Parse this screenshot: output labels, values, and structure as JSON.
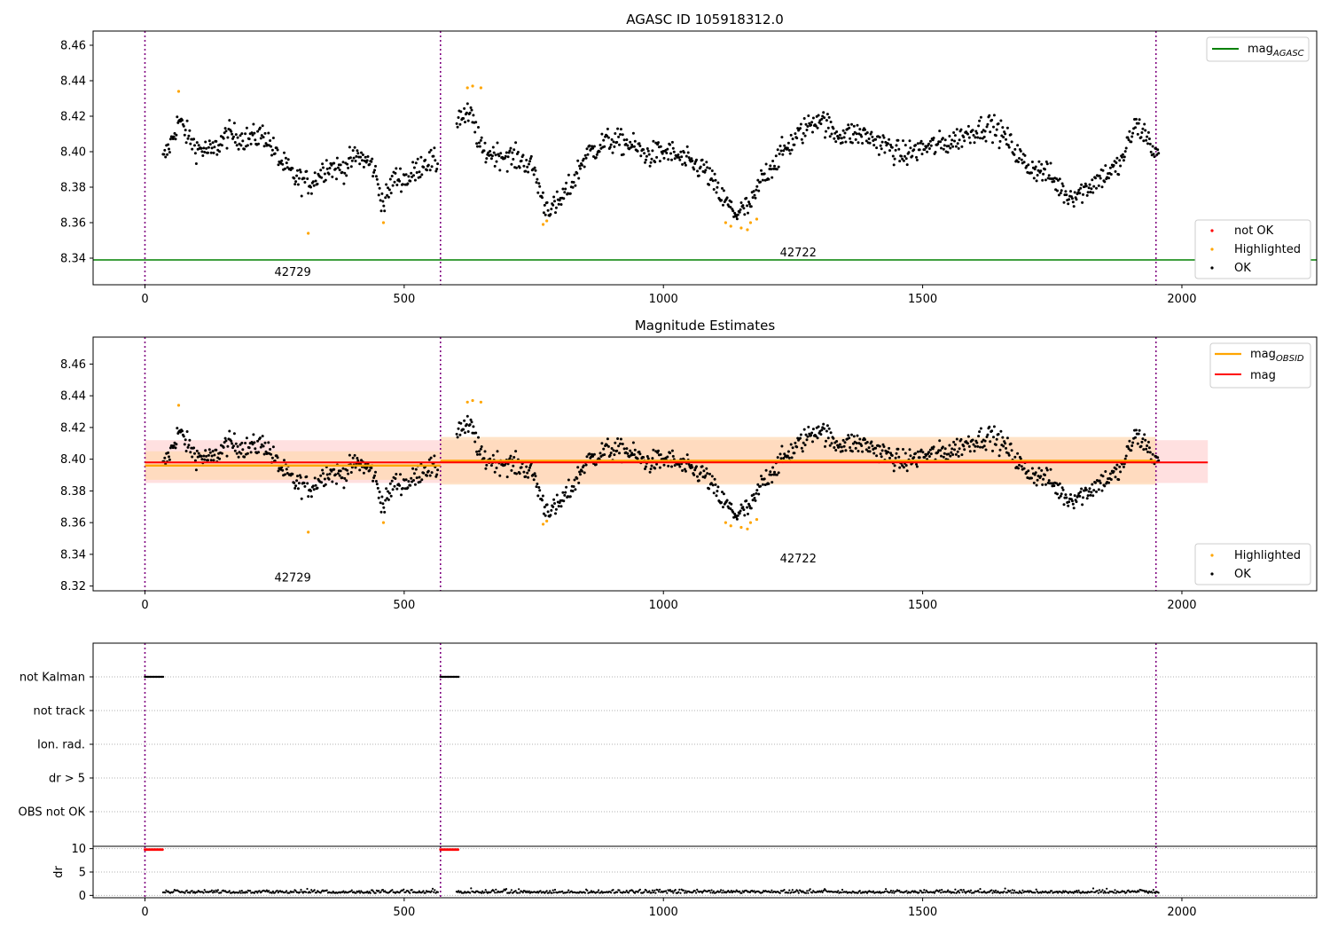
{
  "chart_data": [
    {
      "type": "scatter",
      "title": "AGASC ID 105918312.0",
      "xlim": [
        -100,
        2260
      ],
      "ylim": [
        8.325,
        8.468
      ],
      "xticks": [
        0,
        500,
        1000,
        1500,
        2000
      ],
      "yticks": [
        8.34,
        8.36,
        8.38,
        8.4,
        8.42,
        8.44,
        8.46
      ],
      "mag_agasc": 8.339,
      "obs_boundaries": [
        0,
        570,
        1950
      ],
      "obs_labels": [
        {
          "label": "42729",
          "x": 285,
          "y": 8.33
        },
        {
          "label": "42722",
          "x": 1260,
          "y": 8.341
        }
      ],
      "series": [
        {
          "name": "not OK",
          "color": "#ff0000"
        },
        {
          "name": "Highlighted",
          "color": "#ffa500"
        },
        {
          "name": "OK",
          "color": "#000000"
        }
      ],
      "line_legend": {
        "name": "mag",
        "sub": "AGASC",
        "color": "#008000"
      },
      "trend": [
        [
          35,
          8.395
        ],
        [
          50,
          8.405
        ],
        [
          65,
          8.418
        ],
        [
          80,
          8.41
        ],
        [
          100,
          8.402
        ],
        [
          130,
          8.4
        ],
        [
          160,
          8.41
        ],
        [
          200,
          8.407
        ],
        [
          230,
          8.41
        ],
        [
          260,
          8.395
        ],
        [
          290,
          8.385
        ],
        [
          320,
          8.382
        ],
        [
          350,
          8.392
        ],
        [
          380,
          8.39
        ],
        [
          410,
          8.398
        ],
        [
          440,
          8.392
        ],
        [
          460,
          8.37
        ],
        [
          480,
          8.385
        ],
        [
          510,
          8.385
        ],
        [
          540,
          8.395
        ],
        [
          565,
          8.393
        ],
        [
          605,
          8.42
        ],
        [
          630,
          8.42
        ],
        [
          650,
          8.4
        ],
        [
          690,
          8.398
        ],
        [
          730,
          8.395
        ],
        [
          750,
          8.39
        ],
        [
          770,
          8.37
        ],
        [
          790,
          8.368
        ],
        [
          820,
          8.38
        ],
        [
          850,
          8.398
        ],
        [
          890,
          8.406
        ],
        [
          930,
          8.405
        ],
        [
          970,
          8.398
        ],
        [
          1010,
          8.4
        ],
        [
          1040,
          8.395
        ],
        [
          1080,
          8.39
        ],
        [
          1110,
          8.375
        ],
        [
          1140,
          8.365
        ],
        [
          1170,
          8.37
        ],
        [
          1190,
          8.385
        ],
        [
          1230,
          8.4
        ],
        [
          1270,
          8.412
        ],
        [
          1300,
          8.42
        ],
        [
          1330,
          8.41
        ],
        [
          1380,
          8.41
        ],
        [
          1420,
          8.405
        ],
        [
          1460,
          8.398
        ],
        [
          1500,
          8.402
        ],
        [
          1550,
          8.405
        ],
        [
          1600,
          8.412
        ],
        [
          1630,
          8.415
        ],
        [
          1660,
          8.408
        ],
        [
          1700,
          8.392
        ],
        [
          1740,
          8.388
        ],
        [
          1780,
          8.375
        ],
        [
          1810,
          8.378
        ],
        [
          1840,
          8.385
        ],
        [
          1880,
          8.392
        ],
        [
          1910,
          8.415
        ],
        [
          1930,
          8.41
        ],
        [
          1950,
          8.398
        ]
      ],
      "highlighted_points": [
        [
          65,
          8.434
        ],
        [
          315,
          8.354
        ],
        [
          460,
          8.36
        ],
        [
          622,
          8.436
        ],
        [
          632,
          8.437
        ],
        [
          648,
          8.436
        ],
        [
          768,
          8.359
        ],
        [
          775,
          8.361
        ],
        [
          1120,
          8.36
        ],
        [
          1130,
          8.358
        ],
        [
          1150,
          8.357
        ],
        [
          1162,
          8.356
        ],
        [
          1168,
          8.36
        ],
        [
          1180,
          8.362
        ]
      ]
    },
    {
      "type": "scatter",
      "title": "Magnitude Estimates",
      "xlim": [
        -100,
        2260
      ],
      "ylim": [
        8.317,
        8.477
      ],
      "xticks": [
        0,
        500,
        1000,
        1500,
        2000
      ],
      "yticks": [
        8.32,
        8.34,
        8.36,
        8.38,
        8.4,
        8.42,
        8.44,
        8.46
      ],
      "mag": 8.398,
      "mag_band": [
        8.385,
        8.412
      ],
      "mag_x_range": [
        0,
        2050
      ],
      "mag_obsid": [
        {
          "x": [
            0,
            570
          ],
          "value": 8.396,
          "band": [
            8.387,
            8.405
          ]
        },
        {
          "x": [
            570,
            1950
          ],
          "value": 8.399,
          "band": [
            8.384,
            8.414
          ]
        }
      ],
      "obs_labels": [
        {
          "label": "42729",
          "x": 285,
          "y": 8.323
        },
        {
          "label": "42722",
          "x": 1260,
          "y": 8.335
        }
      ],
      "series": [
        {
          "name": "Highlighted",
          "color": "#ffa500"
        },
        {
          "name": "OK",
          "color": "#000000"
        }
      ],
      "line_legend": [
        {
          "name": "mag",
          "sub": "OBSID",
          "color": "#ffa500"
        },
        {
          "name": "mag",
          "sub": "",
          "color": "#ff0000"
        }
      ]
    },
    {
      "type": "scatter",
      "title": "",
      "xlim": [
        -100,
        2260
      ],
      "flag_rows": [
        "not Kalman",
        "not track",
        "Ion. rad.",
        "dr > 5",
        "OBS not OK"
      ],
      "flag_segments": [
        {
          "row": "not Kalman",
          "x": [
            0,
            35
          ]
        },
        {
          "row": "not Kalman",
          "x": [
            570,
            605
          ]
        }
      ]
    },
    {
      "type": "scatter",
      "title": "",
      "ylabel": "dr",
      "xlim": [
        -100,
        2260
      ],
      "ylim": [
        -0.5,
        10.5
      ],
      "xticks": [
        0,
        500,
        1000,
        1500,
        2000
      ],
      "yticks": [
        0,
        5,
        10
      ],
      "red_segments": [
        {
          "x": [
            0,
            35
          ],
          "y": 9.8
        },
        {
          "x": [
            570,
            605
          ],
          "y": 9.8
        }
      ],
      "dr_typical": 0.8
    }
  ]
}
